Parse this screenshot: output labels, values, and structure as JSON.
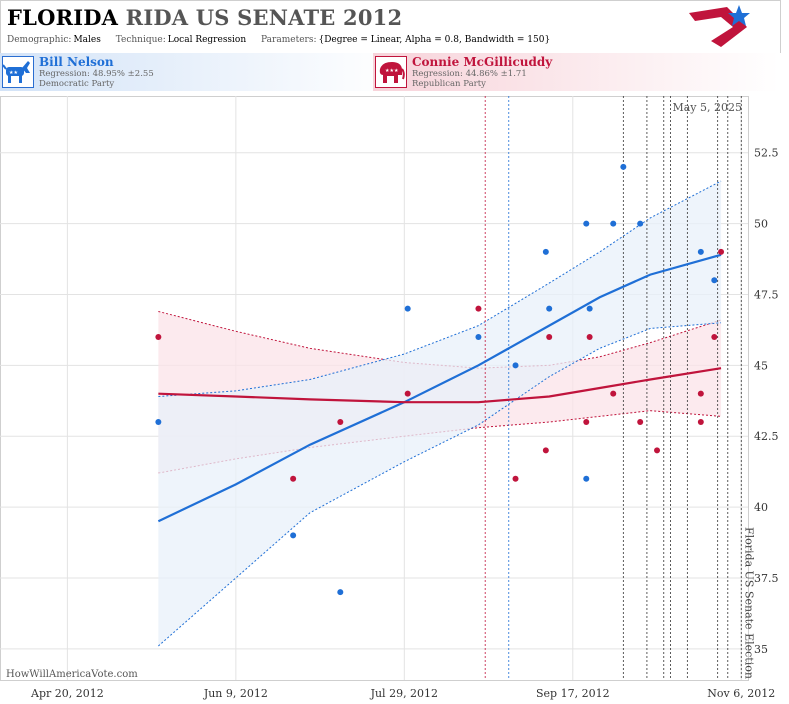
{
  "header": {
    "title_state": "FLORIDA",
    "title_rest": "RIDA US SENATE 2012",
    "meta": [
      {
        "key": "Demographic:",
        "value": "Males"
      },
      {
        "key": "Technique:",
        "value": "Local Regression"
      },
      {
        "key": "Parameters:",
        "value": "{Degree = Linear, Alpha = 0.8, Bandwidth = 150}"
      }
    ]
  },
  "candidates": {
    "dem": {
      "name": "Bill Nelson",
      "regression": "Regression: 48.95% ±2.55",
      "party": "Democratic Party"
    },
    "rep": {
      "name": "Connie McGillicuddy",
      "regression": "Regression: 44.86% ±1.71",
      "party": "Republican Party"
    }
  },
  "chart_data": {
    "type": "scatter",
    "date_stamp": "May 5, 2025",
    "watermark": "HowWillAmericaVote.com",
    "event_label": "Florida US Senate Election",
    "colors": {
      "dem": "#1f6fd6",
      "rep": "#c0143c",
      "dem_band": "#e8f0fa",
      "rep_band": "#fbe3e8"
    },
    "x_ticks": [
      "2012-04-20",
      "2012-06-09",
      "2012-07-29",
      "2012-09-17",
      "2012-11-06"
    ],
    "x_tick_labels": [
      "Apr 20, 2012",
      "Jun 9, 2012",
      "Jul 29, 2012",
      "Sep 17, 2012",
      "Nov 6, 2012"
    ],
    "xlim": [
      "2012-03-31",
      "2012-11-08"
    ],
    "y_ticks": [
      35,
      37.5,
      40,
      42.5,
      45,
      47.5,
      50,
      52.5
    ],
    "y_tick_labels": [
      "35",
      "37.5",
      "40",
      "42.5",
      "45",
      "47.5",
      "50",
      "52.5"
    ],
    "ylim": [
      33.9,
      54.5
    ],
    "grid": true,
    "series": [
      {
        "name": "Bill Nelson",
        "party": "dem",
        "points": [
          {
            "x": "2012-05-17",
            "y": 43
          },
          {
            "x": "2012-06-26",
            "y": 39
          },
          {
            "x": "2012-07-10",
            "y": 37
          },
          {
            "x": "2012-07-30",
            "y": 47
          },
          {
            "x": "2012-08-20",
            "y": 46
          },
          {
            "x": "2012-08-31",
            "y": 45
          },
          {
            "x": "2012-09-09",
            "y": 49
          },
          {
            "x": "2012-09-10",
            "y": 47
          },
          {
            "x": "2012-09-21",
            "y": 50
          },
          {
            "x": "2012-09-21",
            "y": 41
          },
          {
            "x": "2012-09-22",
            "y": 47
          },
          {
            "x": "2012-09-29",
            "y": 50
          },
          {
            "x": "2012-10-02",
            "y": 52
          },
          {
            "x": "2012-10-07",
            "y": 50
          },
          {
            "x": "2012-10-25",
            "y": 49
          },
          {
            "x": "2012-10-29",
            "y": 48
          }
        ],
        "fit": [
          {
            "x": "2012-05-17",
            "y": 39.5,
            "lo": 35.1,
            "hi": 43.9
          },
          {
            "x": "2012-06-09",
            "y": 40.8,
            "lo": 37.5,
            "hi": 44.1
          },
          {
            "x": "2012-07-01",
            "y": 42.2,
            "lo": 39.8,
            "hi": 44.5
          },
          {
            "x": "2012-07-29",
            "y": 43.7,
            "lo": 41.6,
            "hi": 45.4
          },
          {
            "x": "2012-08-20",
            "y": 45.0,
            "lo": 42.9,
            "hi": 46.4
          },
          {
            "x": "2012-09-10",
            "y": 46.4,
            "lo": 44.6,
            "hi": 47.9
          },
          {
            "x": "2012-09-25",
            "y": 47.4,
            "lo": 45.6,
            "hi": 49.0
          },
          {
            "x": "2012-10-10",
            "y": 48.2,
            "lo": 46.3,
            "hi": 50.2
          },
          {
            "x": "2012-10-31",
            "y": 48.9,
            "lo": 46.5,
            "hi": 51.5
          }
        ]
      },
      {
        "name": "Connie McGillicuddy",
        "party": "rep",
        "points": [
          {
            "x": "2012-05-17",
            "y": 46
          },
          {
            "x": "2012-06-26",
            "y": 41
          },
          {
            "x": "2012-07-10",
            "y": 43
          },
          {
            "x": "2012-07-30",
            "y": 44
          },
          {
            "x": "2012-08-20",
            "y": 47
          },
          {
            "x": "2012-08-31",
            "y": 41
          },
          {
            "x": "2012-09-09",
            "y": 42
          },
          {
            "x": "2012-09-10",
            "y": 46
          },
          {
            "x": "2012-09-21",
            "y": 43
          },
          {
            "x": "2012-09-22",
            "y": 46
          },
          {
            "x": "2012-09-29",
            "y": 44
          },
          {
            "x": "2012-10-07",
            "y": 43
          },
          {
            "x": "2012-10-12",
            "y": 42
          },
          {
            "x": "2012-10-25",
            "y": 44
          },
          {
            "x": "2012-10-25",
            "y": 43
          },
          {
            "x": "2012-10-29",
            "y": 46
          },
          {
            "x": "2012-10-31",
            "y": 49
          }
        ],
        "fit": [
          {
            "x": "2012-05-17",
            "y": 44.0,
            "lo": 41.2,
            "hi": 46.9
          },
          {
            "x": "2012-06-09",
            "y": 43.9,
            "lo": 41.7,
            "hi": 46.2
          },
          {
            "x": "2012-07-01",
            "y": 43.8,
            "lo": 42.1,
            "hi": 45.6
          },
          {
            "x": "2012-07-29",
            "y": 43.7,
            "lo": 42.5,
            "hi": 45.1
          },
          {
            "x": "2012-08-20",
            "y": 43.7,
            "lo": 42.8,
            "hi": 44.9
          },
          {
            "x": "2012-09-10",
            "y": 43.9,
            "lo": 43.0,
            "hi": 45.0
          },
          {
            "x": "2012-09-25",
            "y": 44.2,
            "lo": 43.2,
            "hi": 45.3
          },
          {
            "x": "2012-10-10",
            "y": 44.5,
            "lo": 43.4,
            "hi": 45.8
          },
          {
            "x": "2012-10-31",
            "y": 44.9,
            "lo": 43.2,
            "hi": 46.6
          }
        ]
      }
    ],
    "event_lines": [
      {
        "x": "2012-08-22",
        "party": "rep"
      },
      {
        "x": "2012-08-29",
        "party": "dem"
      },
      {
        "x": "2012-10-02",
        "party": "neutral"
      },
      {
        "x": "2012-10-09",
        "party": "neutral"
      },
      {
        "x": "2012-10-14",
        "party": "neutral"
      },
      {
        "x": "2012-10-16",
        "party": "neutral"
      },
      {
        "x": "2012-10-21",
        "party": "neutral"
      },
      {
        "x": "2012-10-30",
        "party": "neutral"
      },
      {
        "x": "2012-11-02",
        "party": "neutral"
      }
    ]
  }
}
